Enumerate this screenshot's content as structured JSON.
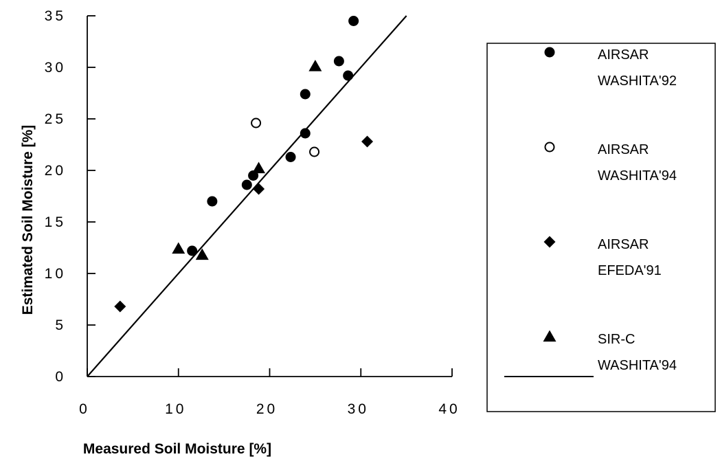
{
  "chart_data": {
    "type": "scatter",
    "xlabel": "Measured Soil Moisture [%]",
    "ylabel": "Estimated Soil Moisture [%]",
    "xlim": [
      0,
      40
    ],
    "ylim": [
      0,
      35
    ],
    "xticks": [
      "0",
      "10",
      "20",
      "30",
      "40"
    ],
    "yticks": [
      "0",
      "5",
      "10",
      "15",
      "20",
      "25",
      "30",
      "35"
    ],
    "grid": false,
    "legend": "right",
    "series": [
      {
        "legend_lines": [
          "AIRSAR",
          "WASHITA'92"
        ],
        "marker": "filled-circle",
        "color": "#000000",
        "points": [
          [
            13.7,
            17.0
          ],
          [
            11.5,
            12.2
          ],
          [
            17.5,
            18.6
          ],
          [
            18.2,
            19.5
          ],
          [
            22.3,
            21.3
          ],
          [
            23.9,
            23.6
          ],
          [
            23.9,
            27.4
          ],
          [
            27.6,
            30.6
          ],
          [
            28.6,
            29.2
          ],
          [
            29.2,
            34.5
          ]
        ]
      },
      {
        "legend_lines": [
          "AIRSAR",
          "WASHITA'94"
        ],
        "marker": "open-circle",
        "color": "#000000",
        "points": [
          [
            18.5,
            24.6
          ],
          [
            24.9,
            21.8
          ]
        ]
      },
      {
        "legend_lines": [
          "AIRSAR",
          "EFEDA'91"
        ],
        "marker": "filled-diamond",
        "color": "#000000",
        "points": [
          [
            3.6,
            6.8
          ],
          [
            18.8,
            18.2
          ],
          [
            30.7,
            22.8
          ]
        ]
      },
      {
        "legend_lines": [
          "SIR-C",
          "WASHITA'94"
        ],
        "marker": "filled-triangle",
        "color": "#000000",
        "points": [
          [
            10.0,
            12.4
          ],
          [
            12.6,
            11.8
          ],
          [
            18.8,
            20.2
          ],
          [
            25.0,
            30.1
          ]
        ]
      }
    ],
    "reference_line": {
      "kind": "1:1 line",
      "from": [
        0,
        0
      ],
      "to": [
        35,
        35
      ]
    }
  }
}
